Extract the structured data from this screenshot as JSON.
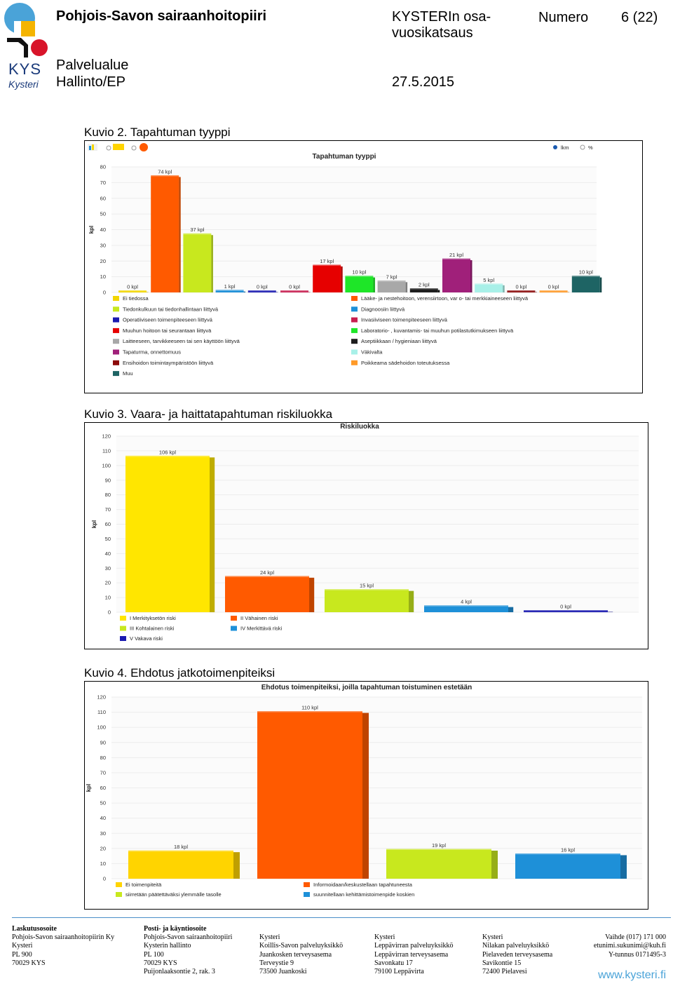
{
  "header": {
    "org": "Pohjois-Savon sairaanhoitopiiri",
    "doc_title_line1": "KYSTERIn osa-",
    "doc_title_line2": "vuosikatsaus",
    "number_label": "Numero",
    "page": "6 (22)",
    "unit_label": "Palvelualue",
    "unit_value": "Hallinto/EP",
    "date": "27.5.2015",
    "logo_text": "KYS",
    "logo_sub": "Kysteri"
  },
  "figures": [
    {
      "caption": "Kuvio 2. Tapahtuman tyyppi",
      "toolbar": {
        "opt1": "lkm",
        "opt2": "%"
      }
    },
    {
      "caption": "Kuvio 3. Vaara- ja haittatapahtuman riskiluokka"
    },
    {
      "caption": "Kuvio 4. Ehdotus jatkotoimenpiteiksi"
    }
  ],
  "chart_data": [
    {
      "type": "bar",
      "title": "Tapahtuman tyyppi",
      "ylabel": "kpl",
      "ylim": [
        0,
        80
      ],
      "yticks": [
        "0",
        "10",
        "20",
        "30",
        "40",
        "50",
        "60",
        "70",
        "80"
      ],
      "data_labels": [
        "0 kpl",
        "74 kpl",
        "37 kpl",
        "1 kpl",
        "0 kpl",
        "0 kpl",
        "17 kpl",
        "10 kpl",
        "7 kpl",
        "2 kpl",
        "21 kpl",
        "5 kpl",
        "0 kpl",
        "0 kpl",
        "10 kpl"
      ],
      "values": [
        0,
        74,
        37,
        1,
        0,
        0,
        17,
        10,
        7,
        2,
        21,
        5,
        0,
        0,
        10
      ],
      "colors": [
        "#f2d600",
        "#ff5a00",
        "#c8e81e",
        "#1e90d8",
        "#1a1ab0",
        "#c81e50",
        "#e60000",
        "#1ee628",
        "#a8a8a8",
        "#1e1e1e",
        "#a0207a",
        "#a8f0e8",
        "#8c0a0a",
        "#ff9a28",
        "#1e6464"
      ],
      "legend": [
        "Ei tiedossa",
        "Lääke- ja nestehoitoon, verensiirtoon, var o- tai merkkiaineeseen liittyvä",
        "Tiedonkulkuun tai tiedonhallintaan liittyvä",
        "Diagnoosiin liittyvä",
        "Operatiiviseen toimenpiteeseen liittyvä",
        "Invasiiviseen toimenpiteeseen liittyvä",
        "Muuhun hoitoon tai seurantaan liittyvä",
        "Laboratorio- , kuvantamis- tai muuhun potilastutkimukseen liittyvä",
        "Laitteeseen, tarvikkeeseen tai sen käyttöön liittyvä",
        "Aseptiikkaan / hygieniaan liittyvä",
        "Tapaturma, onnettomuus",
        "Väkivalta",
        "Ensihoidon toimintaympäristöön liittyvä",
        "Poikkeama sädehoidon toteutuksessa",
        "Muu"
      ]
    },
    {
      "type": "bar",
      "title": "Riskiluokka",
      "ylabel": "kpl",
      "ylim": [
        0,
        120
      ],
      "yticks": [
        "0",
        "10",
        "20",
        "30",
        "40",
        "50",
        "60",
        "70",
        "80",
        "90",
        "100",
        "110",
        "120"
      ],
      "data_labels": [
        "106 kpl",
        "24 kpl",
        "15 kpl",
        "4 kpl",
        "0 kpl"
      ],
      "values": [
        106,
        24,
        15,
        4,
        0
      ],
      "colors": [
        "#ffe600",
        "#ff5a00",
        "#c8e81e",
        "#1e90d8",
        "#1a1ab0"
      ],
      "legend": [
        "I Merkityksetön riski",
        "II Vähainen riski",
        "III Kohtalainen riski",
        "IV Merkittävä riski",
        "V Vakava riski"
      ]
    },
    {
      "type": "bar",
      "title": "Ehdotus toimenpiteiksi, joilla tapahtuman toistuminen estetään",
      "ylabel": "kpl",
      "ylim": [
        0,
        120
      ],
      "yticks": [
        "0",
        "10",
        "20",
        "30",
        "40",
        "50",
        "60",
        "70",
        "80",
        "90",
        "100",
        "110",
        "120"
      ],
      "data_labels": [
        "18 kpl",
        "110 kpl",
        "19 kpl",
        "16 kpl"
      ],
      "values": [
        18,
        110,
        19,
        16
      ],
      "colors": [
        "#ffd400",
        "#ff5a00",
        "#c8e81e",
        "#1e90d8"
      ],
      "legend": [
        "Ei toimenpiteitä",
        "Informoidaan/keskustellaan tapahtuneesta",
        "siirretään päätettäväksi ylemmälle tasolle",
        "suunnitellaan kehittämistoimenpide koskien"
      ]
    }
  ],
  "footer": {
    "col1": [
      "Laskutusosoite",
      "Pohjois-Savon sairaanhoitopiirin Ky",
      "Kysteri",
      "PL 900",
      "70029 KYS"
    ],
    "col2": [
      "Posti- ja käyntiosoite",
      "Pohjois-Savon sairaanhoitopiiri",
      "Kysterin hallinto",
      "PL 100",
      "70029 KYS",
      "Puijonlaaksontie 2, rak. 3"
    ],
    "col3": [
      "",
      "Kysteri",
      "Koillis-Savon palveluyksikkö",
      "Juankosken terveysasema",
      "Terveystie 9",
      "73500 Juankoski"
    ],
    "col4": [
      "",
      "Kysteri",
      "Leppävirran palveluyksikkö",
      "Leppävirran terveysasema",
      "Savonkatu 17",
      "79100 Leppävirta"
    ],
    "col5": [
      "",
      "Kysteri",
      "Nilakan palveluyksikkö",
      "Pielaveden terveysasema",
      "Savikontie 15",
      "72400 Pielavesi"
    ],
    "col6": [
      "",
      "Vaihde (017) 171 000",
      "etunimi.sukunimi@kuh.fi",
      "Y-tunnus 0171495-3"
    ],
    "web": "www.kysteri.fi"
  }
}
